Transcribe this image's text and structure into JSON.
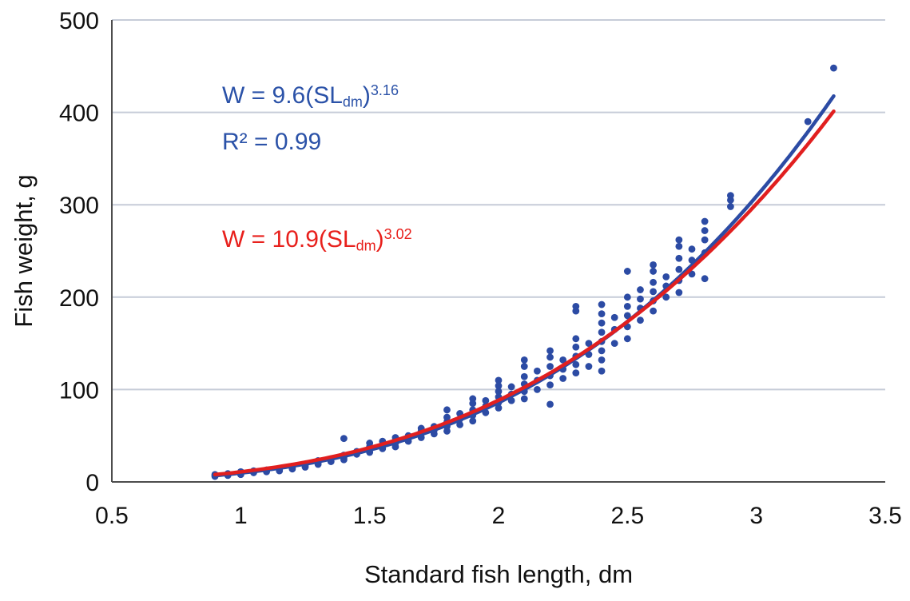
{
  "annotations": {
    "blue_eq": {
      "pre": "W = 9.6(SL",
      "sub": "dm",
      "close": ")",
      "sup": "3.16"
    },
    "blue_r2": "R² = 0.99",
    "red_eq": {
      "pre": "W = 10.9(SL",
      "sub": "dm",
      "close": ")",
      "sup": "3.02"
    }
  },
  "chart_data": {
    "type": "scatter",
    "title": "",
    "xlabel": "Standard fish length, dm",
    "ylabel": "Fish weight, g",
    "xlim": [
      0.5,
      3.5
    ],
    "ylim": [
      0,
      500
    ],
    "x_ticks": [
      0.5,
      1,
      1.5,
      2,
      2.5,
      3,
      3.5
    ],
    "x_tick_labels": [
      "0.5",
      "1",
      "1.5",
      "2",
      "2.5",
      "3",
      "3.5"
    ],
    "y_ticks": [
      0,
      100,
      200,
      300,
      400,
      500
    ],
    "grid": "horizontal",
    "legend": "none",
    "colors": {
      "points": "#2c4ba4",
      "blue_curve": "#2c4ba4",
      "red_curve": "#e11f1f",
      "blue_text": "#2b52a8",
      "red_text": "#e8201c",
      "grid": "#c6ccd8",
      "axis": "#4d4d4d",
      "text": "#111111"
    },
    "fits": [
      {
        "name": "power-fit-blue",
        "equation": "W = 9.6(SLdm)^3.16",
        "a": 9.6,
        "b": 3.16,
        "r2": 0.99,
        "x_range": [
          0.9,
          3.3
        ]
      },
      {
        "name": "power-fit-red",
        "equation": "W = 10.9(SLdm)^3.02",
        "a": 10.9,
        "b": 3.02,
        "x_range": [
          0.9,
          3.3
        ]
      }
    ],
    "points": [
      [
        0.9,
        6
      ],
      [
        0.9,
        7
      ],
      [
        0.9,
        8
      ],
      [
        0.95,
        7
      ],
      [
        0.95,
        9
      ],
      [
        1.0,
        8
      ],
      [
        1.0,
        9
      ],
      [
        1.0,
        10
      ],
      [
        1.0,
        11
      ],
      [
        1.05,
        10
      ],
      [
        1.05,
        12
      ],
      [
        1.1,
        11
      ],
      [
        1.1,
        12
      ],
      [
        1.1,
        13
      ],
      [
        1.15,
        12
      ],
      [
        1.15,
        14
      ],
      [
        1.2,
        14
      ],
      [
        1.2,
        15
      ],
      [
        1.2,
        17
      ],
      [
        1.25,
        16
      ],
      [
        1.25,
        18
      ],
      [
        1.3,
        19
      ],
      [
        1.3,
        21
      ],
      [
        1.3,
        23
      ],
      [
        1.35,
        22
      ],
      [
        1.35,
        25
      ],
      [
        1.4,
        24
      ],
      [
        1.4,
        26
      ],
      [
        1.4,
        29
      ],
      [
        1.4,
        47
      ],
      [
        1.45,
        30
      ],
      [
        1.45,
        33
      ],
      [
        1.5,
        32
      ],
      [
        1.5,
        35
      ],
      [
        1.5,
        38
      ],
      [
        1.5,
        42
      ],
      [
        1.55,
        36
      ],
      [
        1.55,
        40
      ],
      [
        1.55,
        44
      ],
      [
        1.6,
        38
      ],
      [
        1.6,
        42
      ],
      [
        1.6,
        45
      ],
      [
        1.6,
        48
      ],
      [
        1.65,
        44
      ],
      [
        1.65,
        47
      ],
      [
        1.65,
        50
      ],
      [
        1.7,
        48
      ],
      [
        1.7,
        52
      ],
      [
        1.7,
        55
      ],
      [
        1.7,
        58
      ],
      [
        1.75,
        52
      ],
      [
        1.75,
        56
      ],
      [
        1.75,
        60
      ],
      [
        1.8,
        55
      ],
      [
        1.8,
        60
      ],
      [
        1.8,
        65
      ],
      [
        1.8,
        70
      ],
      [
        1.8,
        78
      ],
      [
        1.85,
        62
      ],
      [
        1.85,
        68
      ],
      [
        1.85,
        74
      ],
      [
        1.9,
        66
      ],
      [
        1.9,
        72
      ],
      [
        1.9,
        78
      ],
      [
        1.9,
        85
      ],
      [
        1.9,
        90
      ],
      [
        1.95,
        75
      ],
      [
        1.95,
        82
      ],
      [
        1.95,
        88
      ],
      [
        2.0,
        80
      ],
      [
        2.0,
        86
      ],
      [
        2.0,
        92
      ],
      [
        2.0,
        98
      ],
      [
        2.0,
        104
      ],
      [
        2.0,
        110
      ],
      [
        2.05,
        88
      ],
      [
        2.05,
        95
      ],
      [
        2.05,
        103
      ],
      [
        2.1,
        90
      ],
      [
        2.1,
        98
      ],
      [
        2.1,
        106
      ],
      [
        2.1,
        114
      ],
      [
        2.1,
        125
      ],
      [
        2.1,
        132
      ],
      [
        2.15,
        100
      ],
      [
        2.15,
        110
      ],
      [
        2.15,
        120
      ],
      [
        2.2,
        84
      ],
      [
        2.2,
        105
      ],
      [
        2.2,
        115
      ],
      [
        2.2,
        125
      ],
      [
        2.2,
        135
      ],
      [
        2.2,
        142
      ],
      [
        2.25,
        112
      ],
      [
        2.25,
        122
      ],
      [
        2.25,
        132
      ],
      [
        2.3,
        118
      ],
      [
        2.3,
        127
      ],
      [
        2.3,
        136
      ],
      [
        2.3,
        146
      ],
      [
        2.3,
        155
      ],
      [
        2.3,
        185
      ],
      [
        2.3,
        190
      ],
      [
        2.35,
        125
      ],
      [
        2.35,
        138
      ],
      [
        2.35,
        150
      ],
      [
        2.4,
        120
      ],
      [
        2.4,
        132
      ],
      [
        2.4,
        142
      ],
      [
        2.4,
        152
      ],
      [
        2.4,
        162
      ],
      [
        2.4,
        172
      ],
      [
        2.4,
        182
      ],
      [
        2.4,
        192
      ],
      [
        2.45,
        150
      ],
      [
        2.45,
        165
      ],
      [
        2.45,
        178
      ],
      [
        2.5,
        155
      ],
      [
        2.5,
        168
      ],
      [
        2.5,
        180
      ],
      [
        2.5,
        190
      ],
      [
        2.5,
        200
      ],
      [
        2.5,
        228
      ],
      [
        2.55,
        175
      ],
      [
        2.55,
        188
      ],
      [
        2.55,
        198
      ],
      [
        2.55,
        208
      ],
      [
        2.6,
        185
      ],
      [
        2.6,
        196
      ],
      [
        2.6,
        206
      ],
      [
        2.6,
        216
      ],
      [
        2.6,
        228
      ],
      [
        2.6,
        235
      ],
      [
        2.65,
        200
      ],
      [
        2.65,
        212
      ],
      [
        2.65,
        222
      ],
      [
        2.7,
        205
      ],
      [
        2.7,
        218
      ],
      [
        2.7,
        230
      ],
      [
        2.7,
        242
      ],
      [
        2.7,
        255
      ],
      [
        2.7,
        262
      ],
      [
        2.75,
        225
      ],
      [
        2.75,
        240
      ],
      [
        2.75,
        252
      ],
      [
        2.8,
        220
      ],
      [
        2.8,
        248
      ],
      [
        2.8,
        262
      ],
      [
        2.8,
        272
      ],
      [
        2.8,
        282
      ],
      [
        2.9,
        298
      ],
      [
        2.9,
        305
      ],
      [
        2.9,
        310
      ],
      [
        3.2,
        390
      ],
      [
        3.3,
        448
      ]
    ]
  }
}
